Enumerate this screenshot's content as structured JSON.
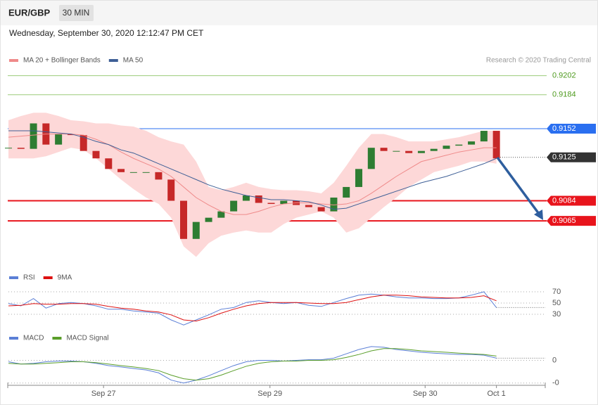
{
  "header": {
    "symbol": "EUR/GBP",
    "interval": "30 MIN",
    "timestamp": "Wednesday, September 30, 2020 12:12:47 PM CET"
  },
  "chart_data": {
    "type": "candlestick",
    "credit": "Research © 2020 Trading Central",
    "xlim": [
      0,
      42.9
    ],
    "xticks": [
      {
        "value": 7.6,
        "label": "Sep 27"
      },
      {
        "value": 20.9,
        "label": "Sep 29"
      },
      {
        "value": 33.3,
        "label": "Sep 30"
      },
      {
        "value": 39,
        "label": "Oct 1"
      }
    ],
    "ylim": [
      0.9018,
      0.9227
    ],
    "close": [
      0.9134,
      0.9133,
      0.9157,
      0.9137,
      0.9147,
      0.9146,
      0.9131,
      0.9124,
      0.9114,
      0.9111,
      0.9111,
      0.9111,
      0.9104,
      0.9084,
      0.9048,
      0.9064,
      0.9068,
      0.9074,
      0.9084,
      0.9089,
      0.9082,
      0.9081,
      0.9084,
      0.908,
      0.9078,
      0.9074,
      0.9087,
      0.9097,
      0.9114,
      0.9134,
      0.9131,
      0.9131,
      0.9129,
      0.9131,
      0.9133,
      0.9136,
      0.9137,
      0.914,
      0.915,
      0.9124
    ],
    "up_color": "#2e7d32",
    "down_color": "#c62828",
    "band_color": "#fdd8d8",
    "series": [
      {
        "name": "MA 20 + Bollinger Bands",
        "color": "#ef8a8a",
        "values": [
          0.9144,
          0.9145,
          0.9146,
          0.9147,
          0.9147,
          0.9147,
          0.9146,
          0.9142,
          0.9137,
          0.913,
          0.9124,
          0.9119,
          0.9114,
          0.9107,
          0.9097,
          0.9087,
          0.908,
          0.9074,
          0.9071,
          0.9071,
          0.9074,
          0.9078,
          0.9081,
          0.9082,
          0.9082,
          0.9081,
          0.908,
          0.9081,
          0.9084,
          0.9091,
          0.9099,
          0.9107,
          0.9114,
          0.9121,
          0.9124,
          0.9127,
          0.913,
          0.9132,
          0.9134,
          0.9134
        ],
        "upper": [
          0.916,
          0.9164,
          0.9167,
          0.9167,
          0.9164,
          0.916,
          0.9159,
          0.9157,
          0.9157,
          0.9155,
          0.9154,
          0.915,
          0.9144,
          0.914,
          0.9137,
          0.9121,
          0.9097,
          0.9094,
          0.9097,
          0.9101,
          0.9097,
          0.9095,
          0.9094,
          0.9094,
          0.9093,
          0.9091,
          0.9101,
          0.9117,
          0.9134,
          0.9147,
          0.9147,
          0.9144,
          0.914,
          0.914,
          0.914,
          0.9142,
          0.9144,
          0.9147,
          0.915,
          0.915
        ],
        "lower": [
          0.9124,
          0.9124,
          0.9124,
          0.9126,
          0.913,
          0.9134,
          0.9132,
          0.9124,
          0.9114,
          0.9104,
          0.9095,
          0.9087,
          0.9081,
          0.9068,
          0.9041,
          0.9031,
          0.9044,
          0.9051,
          0.9054,
          0.9056,
          0.9054,
          0.9054,
          0.9062,
          0.9068,
          0.9071,
          0.9074,
          0.9068,
          0.9054,
          0.9058,
          0.9068,
          0.9078,
          0.9087,
          0.9097,
          0.9104,
          0.9111,
          0.9114,
          0.9117,
          0.9121,
          0.9121,
          0.9119
        ]
      },
      {
        "name": "MA 50",
        "color": "#3e5f96",
        "values": [
          0.915,
          0.915,
          0.915,
          0.9149,
          0.9148,
          0.9147,
          0.9144,
          0.914,
          0.9137,
          0.9132,
          0.9129,
          0.9124,
          0.9119,
          0.9114,
          0.9109,
          0.9104,
          0.9099,
          0.9095,
          0.9092,
          0.9089,
          0.9087,
          0.9085,
          0.9085,
          0.9084,
          0.9083,
          0.908,
          0.9076,
          0.9077,
          0.9081,
          0.9085,
          0.9089,
          0.9093,
          0.9097,
          0.9101,
          0.9104,
          0.9107,
          0.9111,
          0.9115,
          0.9119,
          0.9124
        ]
      }
    ],
    "levels": [
      {
        "value": 0.9202,
        "color": "#9ccc7a",
        "text_color": "#4e9a1e",
        "style": "text"
      },
      {
        "value": 0.9184,
        "color": "#9ccc7a",
        "text_color": "#4e9a1e",
        "style": "text"
      },
      {
        "value": 0.9152,
        "color": "#2a6ff0",
        "text_color": "#ffffff",
        "style": "box"
      },
      {
        "value": 0.9125,
        "color": "#333333",
        "text_color": "#ffffff",
        "style": "current"
      },
      {
        "value": 0.9084,
        "color": "#e8141c",
        "text_color": "#ffffff",
        "style": "box"
      },
      {
        "value": 0.9065,
        "color": "#e8141c",
        "text_color": "#ffffff",
        "style": "box"
      }
    ],
    "rsi": {
      "ylim": [
        5,
        85
      ],
      "yticks": [
        30,
        50,
        70
      ],
      "series": [
        {
          "name": "RSI",
          "color": "#5b7fd6",
          "values": [
            49,
            45,
            58,
            41,
            49,
            51,
            49,
            45,
            39,
            39,
            36,
            34,
            32,
            20,
            11,
            20,
            29,
            39,
            42,
            51,
            54,
            51,
            49,
            51,
            46,
            44,
            51,
            58,
            64,
            66,
            64,
            61,
            59,
            59,
            58,
            58,
            59,
            64,
            70,
            42
          ]
        },
        {
          "name": "9MA",
          "color": "#dd1111",
          "values": [
            45,
            46,
            49,
            48,
            48,
            49,
            49,
            48,
            44,
            41,
            39,
            36,
            34,
            29,
            20,
            18,
            24,
            32,
            39,
            45,
            49,
            51,
            51,
            51,
            50,
            49,
            49,
            51,
            56,
            61,
            64,
            64,
            63,
            61,
            60,
            59,
            59,
            60,
            63,
            54
          ]
        }
      ]
    },
    "macd": {
      "ylim": [
        -0.0011,
        0.0007
      ],
      "yticks": [
        0,
        {
          "value": -0.001,
          "label": "-0"
        }
      ],
      "series": [
        {
          "name": "MACD",
          "color": "#5b7fd6",
          "values": [
            -6e-05,
            -0.00016,
            -0.00013,
            -6e-05,
            -3e-05,
            -3e-05,
            -6e-05,
            -0.00013,
            -0.00023,
            -0.00029,
            -0.00036,
            -0.00042,
            -0.00055,
            -0.00087,
            -0.001,
            -0.00087,
            -0.00068,
            -0.00045,
            -0.00023,
            -6e-05,
            0,
            0,
            -3e-05,
            0,
            3e-05,
            3e-05,
            0.0001,
            0.00029,
            0.00048,
            0.00061,
            0.00058,
            0.00048,
            0.00042,
            0.00036,
            0.00032,
            0.00029,
            0.00026,
            0.00026,
            0.00023,
            0.0001
          ]
        },
        {
          "name": "MACD Signal",
          "color": "#5a9e2a",
          "values": [
            -0.00013,
            -0.00016,
            -0.00016,
            -0.00013,
            -0.0001,
            -6e-05,
            -6e-05,
            -0.0001,
            -0.00016,
            -0.00023,
            -0.00029,
            -0.00036,
            -0.00045,
            -0.00065,
            -0.00081,
            -0.00087,
            -0.00081,
            -0.00065,
            -0.00045,
            -0.00026,
            -0.00013,
            -6e-05,
            -3e-05,
            -3e-05,
            0,
            0,
            3e-05,
            0.00013,
            0.00026,
            0.00042,
            0.00052,
            0.00052,
            0.00048,
            0.00042,
            0.00039,
            0.00036,
            0.00032,
            0.00029,
            0.00026,
            0.00019
          ]
        }
      ]
    }
  }
}
